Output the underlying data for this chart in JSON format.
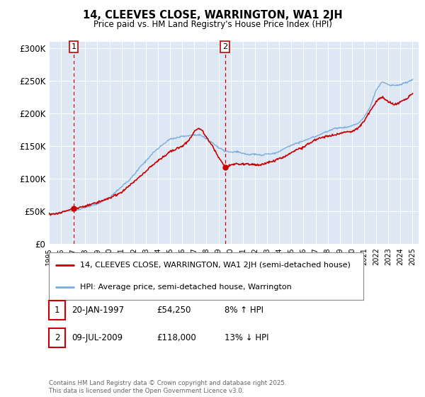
{
  "title": "14, CLEEVES CLOSE, WARRINGTON, WA1 2JH",
  "subtitle": "Price paid vs. HM Land Registry's House Price Index (HPI)",
  "legend_line1": "14, CLEEVES CLOSE, WARRINGTON, WA1 2JH (semi-detached house)",
  "legend_line2": "HPI: Average price, semi-detached house, Warrington",
  "annotation1_label": "1",
  "annotation1_date": "20-JAN-1997",
  "annotation1_price": "£54,250",
  "annotation1_hpi": "8% ↑ HPI",
  "annotation1_year": 1997.055,
  "annotation1_value": 54250,
  "annotation2_label": "2",
  "annotation2_date": "09-JUL-2009",
  "annotation2_price": "£118,000",
  "annotation2_hpi": "13% ↓ HPI",
  "annotation2_year": 2009.52,
  "annotation2_value": 118000,
  "ylabel_ticks": [
    "£0",
    "£50K",
    "£100K",
    "£150K",
    "£200K",
    "£250K",
    "£300K"
  ],
  "ytick_values": [
    0,
    50000,
    100000,
    150000,
    200000,
    250000,
    300000
  ],
  "ylim": [
    0,
    310000
  ],
  "xlim_start": 1995,
  "xlim_end": 2025.5,
  "copyright_text": "Contains HM Land Registry data © Crown copyright and database right 2025.\nThis data is licensed under the Open Government Licence v3.0.",
  "bg_color": "#dde8f4",
  "grid_color": "#ffffff",
  "sale_line_color": "#cc0000",
  "hpi_line_color": "#7aaddb",
  "vline_color": "#cc0000",
  "marker_color": "#cc0000",
  "hpi_years": [
    1995,
    1995.5,
    1996,
    1996.5,
    1997,
    1997.5,
    1998,
    1998.5,
    1999,
    1999.5,
    2000,
    2000.5,
    2001,
    2001.5,
    2002,
    2002.5,
    2003,
    2003.5,
    2004,
    2004.5,
    2005,
    2005.5,
    2006,
    2006.5,
    2007,
    2007.5,
    2008,
    2008.5,
    2009,
    2009.5,
    2010,
    2010.5,
    2011,
    2011.5,
    2012,
    2012.5,
    2013,
    2013.5,
    2014,
    2014.5,
    2015,
    2015.5,
    2016,
    2016.5,
    2017,
    2017.5,
    2018,
    2018.5,
    2019,
    2019.5,
    2020,
    2020.5,
    2021,
    2021.5,
    2022,
    2022.5,
    2023,
    2023.5,
    2024,
    2024.5,
    2025
  ],
  "hpi_prices": [
    46000,
    47000,
    48000,
    49500,
    51000,
    53000,
    55000,
    58000,
    62000,
    67000,
    72000,
    80000,
    88000,
    97000,
    107000,
    118000,
    128000,
    138000,
    147000,
    155000,
    160000,
    163000,
    165000,
    167000,
    168000,
    167000,
    162000,
    155000,
    148000,
    143000,
    141000,
    140000,
    139000,
    138000,
    137000,
    137000,
    138000,
    140000,
    143000,
    147000,
    151000,
    155000,
    158000,
    162000,
    166000,
    170000,
    173000,
    176000,
    178000,
    180000,
    181000,
    185000,
    195000,
    210000,
    235000,
    248000,
    245000,
    243000,
    244000,
    247000,
    252000
  ],
  "sale_years": [
    1995,
    1995.5,
    1996,
    1996.5,
    1997.055,
    1998,
    1999,
    2000,
    2001,
    2002,
    2003,
    2004,
    2005,
    2006,
    2006.5,
    2007,
    2007.3,
    2007.6,
    2008,
    2008.5,
    2009,
    2009.52,
    2010,
    2010.5,
    2011,
    2011.5,
    2012,
    2012.5,
    2013,
    2013.5,
    2014,
    2014.5,
    2015,
    2015.5,
    2016,
    2016.5,
    2017,
    2017.5,
    2018,
    2018.5,
    2019,
    2019.5,
    2020,
    2020.5,
    2021,
    2021.5,
    2022,
    2022.5,
    2023,
    2023.5,
    2024,
    2024.5,
    2025
  ],
  "sale_prices": [
    46500,
    47500,
    49000,
    51000,
    54250,
    58000,
    63000,
    70000,
    80000,
    95000,
    110000,
    128000,
    140000,
    153000,
    157000,
    172000,
    178000,
    175000,
    165000,
    150000,
    133000,
    118000,
    122000,
    124000,
    123000,
    122000,
    121000,
    122000,
    124000,
    127000,
    130000,
    135000,
    140000,
    146000,
    150000,
    155000,
    160000,
    163000,
    166000,
    168000,
    170000,
    172000,
    173000,
    178000,
    188000,
    202000,
    218000,
    225000,
    218000,
    215000,
    218000,
    222000,
    228000
  ]
}
